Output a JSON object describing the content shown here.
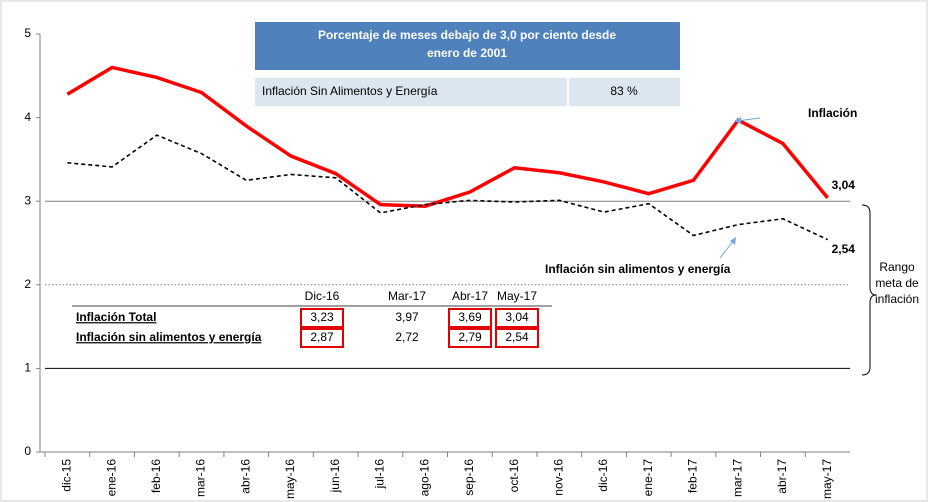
{
  "chart_data": {
    "type": "line",
    "categories": [
      "dic-15",
      "ene-16",
      "feb-16",
      "mar-16",
      "abr-16",
      "may-16",
      "jun-16",
      "jul-16",
      "ago-16",
      "sep-16",
      "oct-16",
      "nov-16",
      "dic-16",
      "ene-17",
      "feb-17",
      "mar-17",
      "abr-17",
      "may-17"
    ],
    "series": [
      {
        "name": "Inflación",
        "color": "#ff0000",
        "style": "solid",
        "end_label": "3,04",
        "values": [
          4.28,
          4.6,
          4.48,
          4.3,
          3.9,
          3.54,
          3.33,
          2.96,
          2.94,
          3.11,
          3.4,
          3.34,
          3.23,
          3.09,
          3.25,
          3.97,
          3.69,
          3.04
        ]
      },
      {
        "name": "Inflación sin alimentos y energía",
        "color": "#000000",
        "style": "dashed",
        "end_label": "2,54",
        "values": [
          3.46,
          3.41,
          3.79,
          3.57,
          3.25,
          3.32,
          3.28,
          2.86,
          2.96,
          3.01,
          2.99,
          3.01,
          2.87,
          2.97,
          2.59,
          2.72,
          2.79,
          2.54
        ]
      }
    ],
    "ylim": [
      0,
      5
    ],
    "yticks": [
      0,
      1,
      2,
      3,
      4,
      5
    ],
    "hlines": [
      {
        "value": 3,
        "style": "solid",
        "color": "#808080"
      },
      {
        "value": 2,
        "style": "dotted",
        "color": "#808080"
      },
      {
        "value": 1,
        "style": "solid",
        "color": "#000000"
      }
    ],
    "range_label": [
      "Rango",
      "meta de",
      "inflación"
    ],
    "info_box": {
      "title": [
        "Porcentaje de meses debajo de 3,0 por ciento desde",
        "enero de 2001"
      ],
      "row": [
        "Inflación Sin Alimentos y Energía",
        "83 %"
      ]
    },
    "table": {
      "columns": [
        "Dic-16",
        "Mar-17",
        "Abr-17",
        "May-17"
      ],
      "highlighted_columns": [
        0,
        2,
        3
      ],
      "rows": [
        [
          "Inflación Total",
          "3,23",
          "3,97",
          "3,69",
          "3,04"
        ],
        [
          "Inflación sin alimentos y energía",
          "2,87",
          "2,72",
          "2,79",
          "2,54"
        ]
      ]
    }
  }
}
